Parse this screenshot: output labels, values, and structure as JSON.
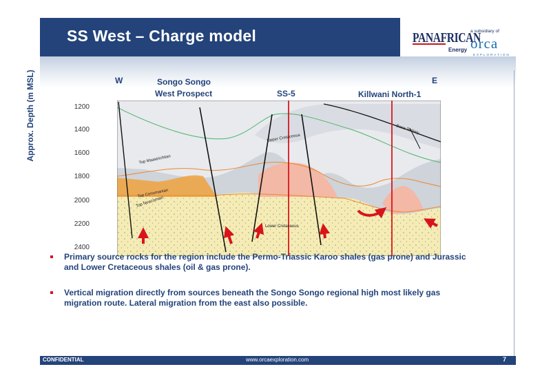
{
  "header": {
    "title": "SS West – Charge model"
  },
  "logo": {
    "panafrican": "PANAFRICAN",
    "energy": "Energy",
    "subsidiary": "a subsidiary of",
    "orca": "orca",
    "orca_sub": "EXPLORATION"
  },
  "section": {
    "y_axis_label": "Approx. Depth (m MSL)",
    "y_ticks": [
      "1200",
      "1400",
      "1600",
      "1800",
      "2000",
      "2200",
      "2400"
    ],
    "dir_w": "W",
    "dir_e": "E",
    "label_prospect_1": "Songo Songo",
    "label_prospect_2": "West Prospect",
    "label_ss5": "SS-5",
    "label_killwani": "Killwani North-1",
    "horizons": {
      "base_tertiary": "Base Tertiary",
      "upper_cretaceous": "Upper Cretaceous",
      "top_maastrichtian": "Top Maastrichtian",
      "top_cenomanian": "Top Cenomanian",
      "top_neocomian": "Top Neocomian",
      "lower_cretaceous": "Lower Cretaceous"
    },
    "colors": {
      "sand": "#f5ecb5",
      "shale": "#cfd3da",
      "light": "#e8eaee",
      "gas": "#f3b8a6",
      "oil": "#eea23d",
      "well": "#d8141b",
      "fault": "#111111",
      "contour": "#4db36a"
    }
  },
  "bullets": [
    "Primary source rocks for the region include the Permo-Triassic Karoo shales (gas prone) and Jurassic and Lower Cretaceous shales (oil & gas prone).",
    "Vertical migration directly from sources beneath the Songo Songo regional high most likely gas migration route. Lateral migration from the east also possible."
  ],
  "footer": {
    "confidential": "CONFIDENTIAL",
    "website": "www.orcaexploration.com",
    "page": "7"
  }
}
